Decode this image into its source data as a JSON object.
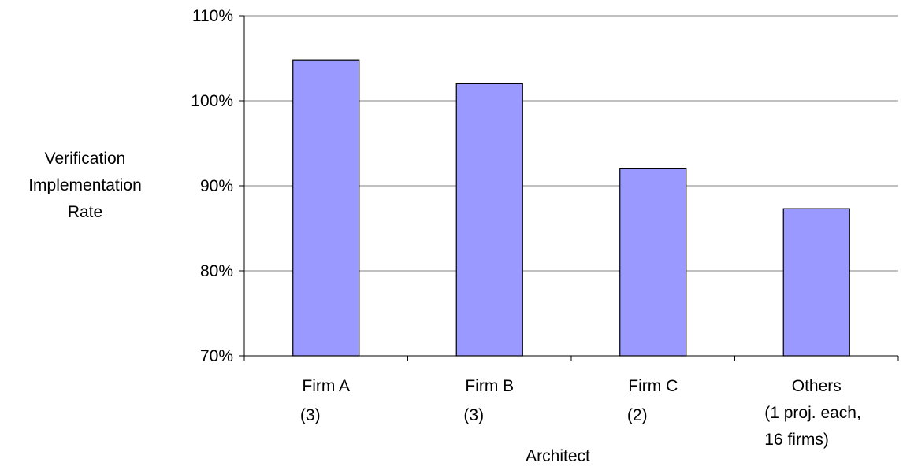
{
  "chart_data": {
    "type": "bar",
    "categories": [
      [
        "Firm A",
        "(3)"
      ],
      [
        "Firm B",
        "(3)"
      ],
      [
        "Firm C",
        "(2)"
      ],
      [
        "Others",
        "(1 proj. each,",
        "16 firms)"
      ]
    ],
    "values": [
      104.8,
      102.0,
      92.0,
      87.3
    ],
    "value_unit": "%",
    "xlabel": "Architect",
    "ylabel": [
      "Verification",
      "Implementation",
      "Rate"
    ],
    "ylim": [
      70,
      110
    ],
    "yticks": [
      "70%",
      "80%",
      "90%",
      "100%",
      "110%"
    ],
    "grid": true,
    "bar_color": "#9999ff",
    "bar_outline": "#000000"
  }
}
